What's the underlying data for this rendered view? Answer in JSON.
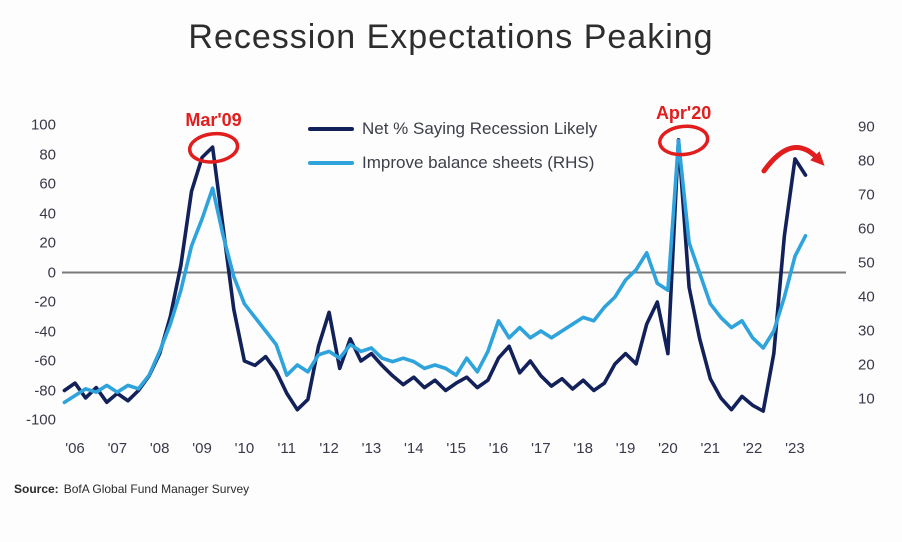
{
  "title": "Recession Expectations Peaking",
  "source": {
    "label": "Source:",
    "text": "BofA Global Fund Manager Survey"
  },
  "legend": [
    {
      "label": "Net % Saying Recession Likely",
      "color": "#13215a"
    },
    {
      "label": "Improve balance sheets (RHS)",
      "color": "#2ea3dc"
    }
  ],
  "colors": {
    "navy_series": "#13215a",
    "blue_series": "#2ea3dc",
    "annotation_red": "#e11d1d",
    "zero_line": "#7a7a7a",
    "axis_text": "#39394a",
    "title_text": "#2d2d2d"
  },
  "chart_data": {
    "type": "line",
    "title": "Recession Expectations Peaking",
    "grid": "zero-line-only",
    "legend_position": "top-center",
    "left_axis": {
      "ticks": [
        100,
        80,
        60,
        40,
        20,
        0,
        -20,
        -40,
        -60,
        -80,
        -100
      ],
      "range": [
        -100,
        100
      ]
    },
    "right_axis": {
      "ticks": [
        90,
        80,
        70,
        60,
        50,
        40,
        30,
        20,
        10
      ],
      "range": [
        0,
        97
      ]
    },
    "x_axis": {
      "tick_labels": [
        "'06",
        "'07",
        "'08",
        "'09",
        "'10",
        "'11",
        "'12",
        "'13",
        "'14",
        "'15",
        "'16",
        "'17",
        "'18",
        "'19",
        "'20",
        "'21",
        "'22",
        "'23"
      ],
      "start_year": 2006
    },
    "x": [
      2005.75,
      2006.0,
      2006.25,
      2006.5,
      2006.75,
      2007.0,
      2007.25,
      2007.5,
      2007.75,
      2008.0,
      2008.25,
      2008.5,
      2008.75,
      2009.0,
      2009.25,
      2009.5,
      2009.75,
      2010.0,
      2010.25,
      2010.5,
      2010.75,
      2011.0,
      2011.25,
      2011.5,
      2011.75,
      2012.0,
      2012.25,
      2012.5,
      2012.75,
      2013.0,
      2013.25,
      2013.5,
      2013.75,
      2014.0,
      2014.25,
      2014.5,
      2014.75,
      2015.0,
      2015.25,
      2015.5,
      2015.75,
      2016.0,
      2016.25,
      2016.5,
      2016.75,
      2017.0,
      2017.25,
      2017.5,
      2017.75,
      2018.0,
      2018.25,
      2018.5,
      2018.75,
      2019.0,
      2019.25,
      2019.5,
      2019.75,
      2020.0,
      2020.25,
      2020.5,
      2020.75,
      2021.0,
      2021.25,
      2021.5,
      2021.75,
      2022.0,
      2022.25,
      2022.5,
      2022.75,
      2023.0,
      2023.25
    ],
    "series": [
      {
        "name": "Net % Saying Recession Likely",
        "axis": "left",
        "color": "#13215a",
        "values": [
          -80,
          -75,
          -85,
          -78,
          -88,
          -82,
          -87,
          -80,
          -70,
          -55,
          -30,
          5,
          55,
          78,
          85,
          30,
          -25,
          -60,
          -63,
          -57,
          -67,
          -82,
          -93,
          -86,
          -50,
          -27,
          -65,
          -45,
          -60,
          -55,
          -63,
          -70,
          -76,
          -71,
          -78,
          -73,
          -80,
          -75,
          -71,
          -78,
          -73,
          -58,
          -50,
          -68,
          -60,
          -70,
          -77,
          -72,
          -79,
          -73,
          -80,
          -75,
          -62,
          -55,
          -62,
          -35,
          -20,
          -55,
          90,
          -10,
          -45,
          -72,
          -85,
          -93,
          -84,
          -90,
          -94,
          -55,
          25,
          77,
          66
        ]
      },
      {
        "name": "Improve balance sheets (RHS)",
        "axis": "right",
        "color": "#2ea3dc",
        "values": [
          9,
          11,
          13,
          12,
          14,
          12,
          14,
          13,
          17,
          24,
          32,
          42,
          55,
          63,
          72,
          58,
          46,
          38,
          34,
          30,
          26,
          17,
          20,
          18,
          23,
          24,
          22,
          26,
          24,
          25,
          22,
          21,
          22,
          21,
          19,
          20,
          19,
          17,
          22,
          18,
          24,
          33,
          28,
          31,
          28,
          30,
          28,
          30,
          32,
          34,
          33,
          37,
          40,
          45,
          48,
          53,
          44,
          42,
          86,
          56,
          47,
          38,
          34,
          31,
          33,
          28,
          25,
          30,
          40,
          52,
          58
        ]
      }
    ],
    "annotations": [
      {
        "id": "mar09",
        "text": "Mar'09",
        "shape": "ellipse",
        "x": 2009.2,
        "value": 85,
        "axis": "left"
      },
      {
        "id": "apr20",
        "text": "Apr'20",
        "shape": "ellipse",
        "x": 2020.3,
        "value": 90,
        "axis": "left"
      },
      {
        "id": "peak-arrow",
        "text": "",
        "shape": "arc-arrow",
        "x": 2023.0,
        "value": 77,
        "axis": "left"
      }
    ]
  }
}
